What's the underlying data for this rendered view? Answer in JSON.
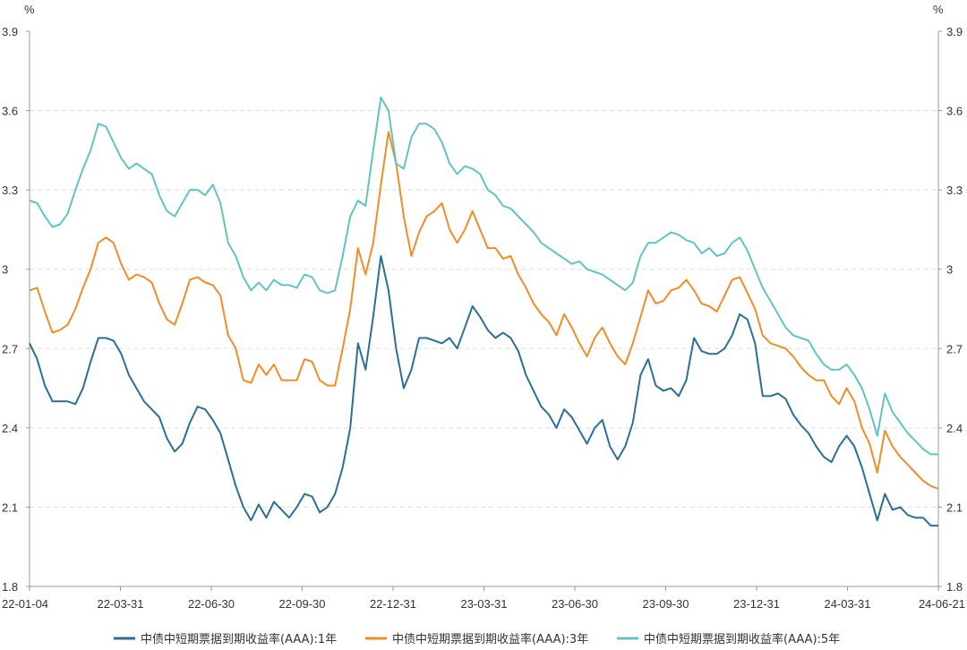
{
  "chart_data": {
    "type": "line",
    "title": "",
    "units": {
      "left": "%",
      "right": "%"
    },
    "ylim": [
      1.8,
      3.9
    ],
    "yticks": [
      "3.9",
      "3.6",
      "3.3",
      "3",
      "2.7",
      "2.4",
      "2.1",
      "1.8"
    ],
    "ytick_values": [
      3.9,
      3.6,
      3.3,
      3.0,
      2.7,
      2.4,
      2.1,
      1.8
    ],
    "xticks": [
      "22-01-04",
      "22-03-31",
      "22-06-30",
      "22-09-30",
      "22-12-31",
      "23-03-31",
      "23-06-30",
      "23-09-30",
      "23-12-31",
      "24-03-31",
      "24-06-21"
    ],
    "grid": true,
    "legend_position": "bottom",
    "series": [
      {
        "name": "中债中短期票据到期收益率(AAA):1年",
        "color": "#2b6f96",
        "values": [
          2.72,
          2.66,
          2.56,
          2.5,
          2.5,
          2.5,
          2.49,
          2.55,
          2.65,
          2.74,
          2.74,
          2.73,
          2.68,
          2.6,
          2.55,
          2.5,
          2.47,
          2.44,
          2.36,
          2.31,
          2.34,
          2.42,
          2.48,
          2.47,
          2.43,
          2.38,
          2.28,
          2.18,
          2.1,
          2.05,
          2.11,
          2.06,
          2.12,
          2.09,
          2.06,
          2.1,
          2.15,
          2.14,
          2.08,
          2.1,
          2.15,
          2.25,
          2.4,
          2.72,
          2.62,
          2.82,
          3.05,
          2.92,
          2.7,
          2.55,
          2.62,
          2.74,
          2.74,
          2.73,
          2.72,
          2.74,
          2.7,
          2.78,
          2.86,
          2.82,
          2.77,
          2.74,
          2.76,
          2.74,
          2.69,
          2.6,
          2.54,
          2.48,
          2.45,
          2.4,
          2.47,
          2.44,
          2.39,
          2.34,
          2.4,
          2.43,
          2.33,
          2.28,
          2.33,
          2.42,
          2.6,
          2.66,
          2.56,
          2.54,
          2.55,
          2.52,
          2.58,
          2.74,
          2.69,
          2.68,
          2.68,
          2.7,
          2.75,
          2.83,
          2.81,
          2.72,
          2.52,
          2.52,
          2.53,
          2.51,
          2.45,
          2.41,
          2.38,
          2.33,
          2.29,
          2.27,
          2.33,
          2.37,
          2.33,
          2.25,
          2.15,
          2.05,
          2.15,
          2.09,
          2.1,
          2.07,
          2.06,
          2.06,
          2.03,
          2.03
        ]
      },
      {
        "name": "中债中短期票据到期收益率(AAA):3年",
        "color": "#f28c28",
        "values": [
          2.92,
          2.93,
          2.84,
          2.76,
          2.77,
          2.79,
          2.85,
          2.93,
          3.0,
          3.1,
          3.12,
          3.1,
          3.02,
          2.96,
          2.98,
          2.97,
          2.95,
          2.87,
          2.81,
          2.79,
          2.87,
          2.96,
          2.97,
          2.95,
          2.94,
          2.9,
          2.75,
          2.7,
          2.58,
          2.57,
          2.64,
          2.6,
          2.64,
          2.58,
          2.58,
          2.58,
          2.66,
          2.65,
          2.58,
          2.56,
          2.56,
          2.7,
          2.85,
          3.08,
          2.98,
          3.1,
          3.32,
          3.52,
          3.4,
          3.2,
          3.05,
          3.14,
          3.2,
          3.22,
          3.25,
          3.15,
          3.1,
          3.15,
          3.22,
          3.15,
          3.08,
          3.08,
          3.04,
          3.05,
          2.98,
          2.93,
          2.87,
          2.83,
          2.8,
          2.75,
          2.83,
          2.78,
          2.72,
          2.67,
          2.74,
          2.78,
          2.72,
          2.67,
          2.64,
          2.72,
          2.82,
          2.92,
          2.87,
          2.88,
          2.92,
          2.93,
          2.96,
          2.92,
          2.87,
          2.86,
          2.84,
          2.9,
          2.96,
          2.97,
          2.91,
          2.85,
          2.75,
          2.72,
          2.71,
          2.7,
          2.67,
          2.63,
          2.6,
          2.58,
          2.58,
          2.52,
          2.49,
          2.55,
          2.5,
          2.4,
          2.34,
          2.23,
          2.39,
          2.33,
          2.29,
          2.26,
          2.23,
          2.2,
          2.18,
          2.17
        ]
      },
      {
        "name": "中债中短期票据到期收益率(AAA):5年",
        "color": "#63c3c3",
        "values": [
          3.26,
          3.25,
          3.2,
          3.16,
          3.17,
          3.21,
          3.3,
          3.38,
          3.45,
          3.55,
          3.54,
          3.48,
          3.42,
          3.38,
          3.4,
          3.38,
          3.36,
          3.28,
          3.22,
          3.2,
          3.25,
          3.3,
          3.3,
          3.28,
          3.32,
          3.25,
          3.1,
          3.05,
          2.97,
          2.92,
          2.95,
          2.92,
          2.96,
          2.94,
          2.94,
          2.93,
          2.98,
          2.97,
          2.92,
          2.91,
          2.92,
          3.05,
          3.2,
          3.26,
          3.24,
          3.45,
          3.65,
          3.6,
          3.4,
          3.38,
          3.5,
          3.55,
          3.55,
          3.53,
          3.48,
          3.4,
          3.36,
          3.39,
          3.38,
          3.36,
          3.3,
          3.28,
          3.24,
          3.23,
          3.2,
          3.17,
          3.14,
          3.1,
          3.08,
          3.06,
          3.04,
          3.02,
          3.03,
          3.0,
          2.99,
          2.98,
          2.96,
          2.94,
          2.92,
          2.95,
          3.05,
          3.1,
          3.1,
          3.12,
          3.14,
          3.13,
          3.11,
          3.1,
          3.06,
          3.08,
          3.05,
          3.06,
          3.1,
          3.12,
          3.07,
          3.0,
          2.93,
          2.88,
          2.83,
          2.78,
          2.75,
          2.74,
          2.73,
          2.68,
          2.64,
          2.62,
          2.62,
          2.64,
          2.6,
          2.55,
          2.47,
          2.37,
          2.53,
          2.46,
          2.42,
          2.38,
          2.35,
          2.32,
          2.3,
          2.3
        ]
      }
    ]
  }
}
